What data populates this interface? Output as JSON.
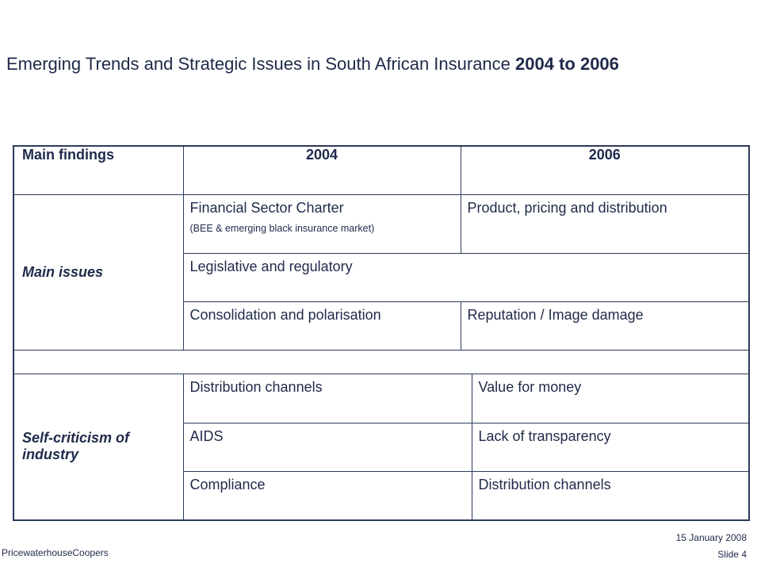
{
  "slide": {
    "title_regular": "Emerging Trends and Strategic Issues in South African Insurance ",
    "title_bold": "2004 to 2006"
  },
  "table": {
    "headers": [
      "Main findings",
      "2004",
      "2006"
    ],
    "main_issues": {
      "label": "Main issues",
      "row1_2004": "Financial Sector Charter",
      "row1_2004_note": "(BEE & emerging black insurance market)",
      "row1_2006": "Product, pricing and distribution",
      "row2_span": "Legislative and regulatory",
      "row3_2004": "Consolidation and polarisation",
      "row3_2006": "Reputation / Image damage"
    },
    "self_criticism": {
      "label": "Self-criticism of industry",
      "rows": [
        [
          "Distribution channels",
          "Value for money"
        ],
        [
          "AIDS",
          "Lack of transparency"
        ],
        [
          "Compliance",
          "Distribution channels"
        ]
      ]
    }
  },
  "footer": {
    "company": "PricewaterhouseCoopers",
    "date": "15 January 2008",
    "slide_number": "Slide 4"
  }
}
